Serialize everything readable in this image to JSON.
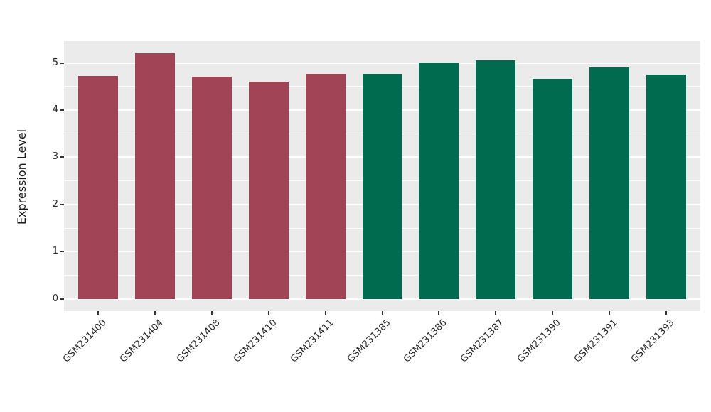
{
  "chart_data": {
    "type": "bar",
    "title": "",
    "xlabel": "",
    "ylabel": "Expression Level",
    "categories": [
      "GSM231400",
      "GSM231404",
      "GSM231408",
      "GSM231410",
      "GSM231411",
      "GSM231385",
      "GSM231386",
      "GSM231387",
      "GSM231390",
      "GSM231391",
      "GSM231393"
    ],
    "values": [
      4.72,
      5.2,
      4.7,
      4.6,
      4.77,
      4.77,
      5.01,
      5.05,
      4.66,
      4.9,
      4.75
    ],
    "groups": [
      "red",
      "red",
      "red",
      "red",
      "red",
      "green",
      "green",
      "green",
      "green",
      "green",
      "green"
    ],
    "group_colors": {
      "red": "#A14556",
      "green": "#006B4E"
    },
    "yticks": [
      0,
      1,
      2,
      3,
      4,
      5
    ],
    "ylim": [
      -0.26,
      5.46
    ],
    "grid": true,
    "legend": "none",
    "panel_background": "#EBEBEB",
    "grid_color": "#FFFFFF",
    "bar_width_ratio": 0.7
  }
}
